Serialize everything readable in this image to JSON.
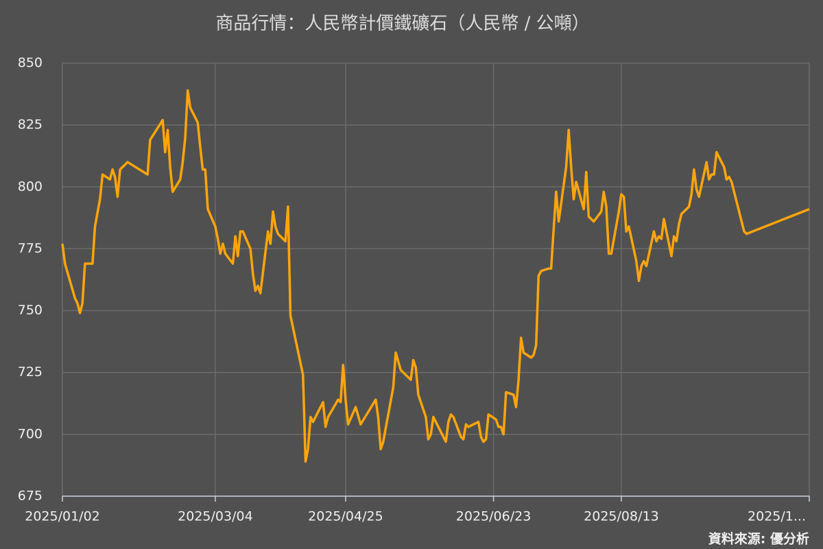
{
  "chart_data": {
    "type": "line",
    "title": "商品行情：人民幣計價鐵礦石（人民幣 / 公噸）",
    "source": "資料來源: 優分析",
    "x": [
      "2025/01/02",
      "2025/01/03",
      "2025/01/07",
      "2025/01/08",
      "2025/01/09",
      "2025/01/10",
      "2025/01/11",
      "2025/01/14",
      "2025/01/15",
      "2025/01/17",
      "2025/01/18",
      "2025/01/21",
      "2025/01/22",
      "2025/01/23",
      "2025/01/24",
      "2025/01/25",
      "2025/01/28",
      "2025/02/05",
      "2025/02/06",
      "2025/02/11",
      "2025/02/12",
      "2025/02/13",
      "2025/02/14",
      "2025/02/15",
      "2025/02/18",
      "2025/02/19",
      "2025/02/20",
      "2025/02/21",
      "2025/02/22",
      "2025/02/25",
      "2025/02/26",
      "2025/02/27",
      "2025/02/28",
      "2025/03/01",
      "2025/03/04",
      "2025/03/05",
      "2025/03/06",
      "2025/03/07",
      "2025/03/08",
      "2025/03/11",
      "2025/03/12",
      "2025/03/13",
      "2025/03/14",
      "2025/03/15",
      "2025/03/18",
      "2025/03/19",
      "2025/03/20",
      "2025/03/21",
      "2025/03/22",
      "2025/03/25",
      "2025/03/26",
      "2025/03/27",
      "2025/03/28",
      "2025/03/29",
      "2025/04/01",
      "2025/04/02",
      "2025/04/03",
      "2025/04/08",
      "2025/04/09",
      "2025/04/10",
      "2025/04/11",
      "2025/04/12",
      "2025/04/15",
      "2025/04/16",
      "2025/04/17",
      "2025/04/18",
      "2025/04/22",
      "2025/04/23",
      "2025/04/24",
      "2025/04/25",
      "2025/04/26",
      "2025/04/29",
      "2025/05/01",
      "2025/05/07",
      "2025/05/08",
      "2025/05/09",
      "2025/05/10",
      "2025/05/14",
      "2025/05/15",
      "2025/05/17",
      "2025/05/21",
      "2025/05/22",
      "2025/05/23",
      "2025/05/24",
      "2025/05/27",
      "2025/05/28",
      "2025/05/29",
      "2025/05/30",
      "2025/05/31",
      "2025/06/04",
      "2025/06/05",
      "2025/06/06",
      "2025/06/07",
      "2025/06/10",
      "2025/06/11",
      "2025/06/12",
      "2025/06/13",
      "2025/06/17",
      "2025/06/18",
      "2025/06/19",
      "2025/06/20",
      "2025/06/21",
      "2025/06/24",
      "2025/06/25",
      "2025/06/26",
      "2025/06/27",
      "2025/06/28",
      "2025/07/01",
      "2025/07/02",
      "2025/07/03",
      "2025/07/04",
      "2025/07/05",
      "2025/07/08",
      "2025/07/09",
      "2025/07/10",
      "2025/07/11",
      "2025/07/12",
      "2025/07/15",
      "2025/07/16",
      "2025/07/17",
      "2025/07/18",
      "2025/07/19",
      "2025/07/22",
      "2025/07/23",
      "2025/07/24",
      "2025/07/25",
      "2025/07/26",
      "2025/07/29",
      "2025/07/30",
      "2025/07/31",
      "2025/08/01",
      "2025/08/02",
      "2025/08/05",
      "2025/08/06",
      "2025/08/07",
      "2025/08/08",
      "2025/08/09",
      "2025/08/12",
      "2025/08/13",
      "2025/08/14",
      "2025/08/15",
      "2025/08/16",
      "2025/08/19",
      "2025/08/20",
      "2025/08/21",
      "2025/08/22",
      "2025/08/23",
      "2025/08/26",
      "2025/08/27",
      "2025/08/28",
      "2025/08/29",
      "2025/08/30",
      "2025/09/02",
      "2025/09/03",
      "2025/09/04",
      "2025/09/05",
      "2025/09/06",
      "2025/09/09",
      "2025/09/10",
      "2025/09/11",
      "2025/09/12",
      "2025/09/13",
      "2025/09/16",
      "2025/09/17",
      "2025/09/18",
      "2025/09/19",
      "2025/09/20",
      "2025/09/23",
      "2025/09/24",
      "2025/09/25",
      "2025/09/26",
      "2025/10/01",
      "2025/10/02",
      "2025/10/27"
    ],
    "series": [
      {
        "name": "鐵礦石",
        "color": "#ffa50a",
        "values": [
          777,
          769,
          755,
          753,
          749,
          753,
          769,
          769,
          784,
          795,
          805,
          803,
          807,
          804,
          796,
          807,
          810,
          805,
          819,
          827,
          814,
          823,
          808,
          798,
          803,
          810,
          820,
          839,
          832,
          826,
          816,
          807,
          807,
          791,
          784,
          779,
          773,
          777,
          773,
          769,
          780,
          772,
          782,
          782,
          775,
          765,
          758,
          760,
          757,
          782,
          777,
          790,
          784,
          781,
          778,
          792,
          748,
          724,
          689,
          694,
          707,
          705,
          711,
          713,
          703,
          707,
          714,
          713,
          728,
          714,
          704,
          711,
          704,
          714,
          707,
          694,
          697,
          719,
          733,
          726,
          722,
          730,
          727,
          716,
          707,
          698,
          700,
          707,
          705,
          697,
          705,
          708,
          707,
          699,
          698,
          704,
          703,
          705,
          699,
          697,
          698,
          708,
          706,
          703,
          703,
          700,
          717,
          716,
          711,
          722,
          739,
          733,
          731,
          732,
          736,
          764,
          766,
          767,
          767,
          783,
          798,
          786,
          808,
          823,
          808,
          795,
          802,
          791,
          806,
          788,
          787,
          786,
          790,
          798,
          792,
          773,
          773,
          790,
          797,
          796,
          782,
          784,
          770,
          762,
          768,
          770,
          768,
          782,
          778,
          780,
          779,
          787,
          772,
          780,
          778,
          785,
          789,
          792,
          797,
          807,
          799,
          796,
          810,
          803,
          805,
          805,
          814,
          808,
          803,
          804,
          802,
          782,
          781,
          791
        ]
      }
    ],
    "xlim": [
      "2025/01/02",
      "2025/10/27"
    ],
    "xticks": [
      "2025/01/02",
      "2025/03/04",
      "2025/04/25",
      "2025/06/23",
      "2025/08/13",
      {
        "value": "2025/10/27",
        "label": "2025/1..."
      }
    ],
    "ylim": [
      675,
      850
    ],
    "yticks": [
      675,
      700,
      725,
      750,
      775,
      800,
      825,
      850
    ],
    "grid": true
  }
}
